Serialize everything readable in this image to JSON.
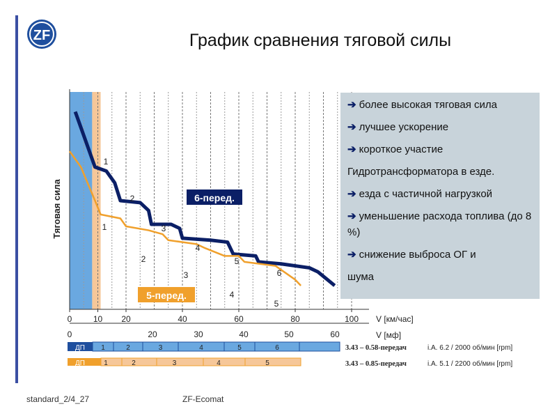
{
  "page": {
    "title": "График сравнения тяговой силы",
    "footer_left": "standard_2/4_27",
    "footer_center": "ZF-Ecomat",
    "logo_text": "ZF",
    "brand_color": "#1f4f9e"
  },
  "info_box": {
    "items": [
      {
        "arrow": true,
        "text": "более высокая тяговая сила"
      },
      {
        "arrow": true,
        "text": "лучшее ускорение"
      },
      {
        "arrow": true,
        "text": "короткое участие"
      },
      {
        "arrow": false,
        "text": "Гидротрансформатора  в езде."
      },
      {
        "arrow": true,
        "text": "езда с частичной нагрузкой"
      },
      {
        "arrow": true,
        "text": "уменьшение  расхода топлива (до 8 %)"
      },
      {
        "arrow": true,
        "text": "снижение  выброса ОГ и"
      },
      {
        "arrow": false,
        "text": "шума"
      }
    ]
  },
  "gearbars": {
    "six": {
      "ratio": "3.43 – 0.58-передач",
      "info": "i.A. 6.2 / 2000 об/мин [rpm]",
      "dp": "ДП",
      "gears": [
        "1",
        "2",
        "3",
        "4",
        "5",
        "6"
      ]
    },
    "five": {
      "ratio": "3.43 – 0.85-передач",
      "info": "i.A. 5.1 / 2200 об/мин [rpm]",
      "dp": "ДП",
      "gears": [
        "1",
        "2",
        "3",
        "4",
        "5"
      ]
    }
  },
  "chart_data": {
    "type": "line",
    "ylabel": "Тяговая сила",
    "x_axes": [
      {
        "label": "V [км/час]",
        "ticks": [
          "0",
          "10",
          "20",
          "40",
          "60",
          "80",
          "100"
        ],
        "range": [
          0,
          100
        ]
      },
      {
        "label": "V [мф]",
        "ticks": [
          "0",
          "20",
          "30",
          "40",
          "50",
          "60"
        ],
        "range": [
          0,
          60
        ]
      }
    ],
    "series": [
      {
        "name": "6-перед.",
        "color": "#0b1f66",
        "gear_labels": [
          "1",
          "2",
          "3",
          "4",
          "5",
          "6"
        ],
        "values_kmh": [
          [
            2,
            100
          ],
          [
            9,
            72
          ],
          [
            13,
            70
          ],
          [
            16,
            64
          ],
          [
            18,
            55
          ],
          [
            25,
            54
          ],
          [
            28,
            50
          ],
          [
            29,
            43
          ],
          [
            36,
            43
          ],
          [
            39,
            41
          ],
          [
            40,
            36
          ],
          [
            50,
            35
          ],
          [
            56,
            34
          ],
          [
            58,
            28
          ],
          [
            66,
            27
          ],
          [
            67,
            24
          ],
          [
            75,
            23
          ],
          [
            85,
            21
          ],
          [
            88,
            19
          ],
          [
            94,
            12
          ]
        ]
      },
      {
        "name": "5-перед.",
        "color": "#f0a02c",
        "gear_labels": [
          "1",
          "2",
          "3",
          "4",
          "5"
        ],
        "values_kmh": [
          [
            0,
            80
          ],
          [
            4,
            72
          ],
          [
            9,
            55
          ],
          [
            11,
            48
          ],
          [
            18,
            46
          ],
          [
            20,
            42
          ],
          [
            28,
            40
          ],
          [
            33,
            38
          ],
          [
            35,
            35
          ],
          [
            45,
            33
          ],
          [
            48,
            31
          ],
          [
            55,
            27
          ],
          [
            60,
            27
          ],
          [
            62,
            24
          ],
          [
            73,
            22
          ],
          [
            80,
            15
          ],
          [
            82,
            12
          ]
        ]
      }
    ],
    "converter_bands": [
      {
        "name": "6-перед.",
        "color": "#6aa8e0",
        "x_range": [
          0,
          8
        ]
      },
      {
        "name": "5-перед.",
        "color": "#f6c799",
        "x_range": [
          8,
          11
        ]
      }
    ],
    "grid": true
  }
}
